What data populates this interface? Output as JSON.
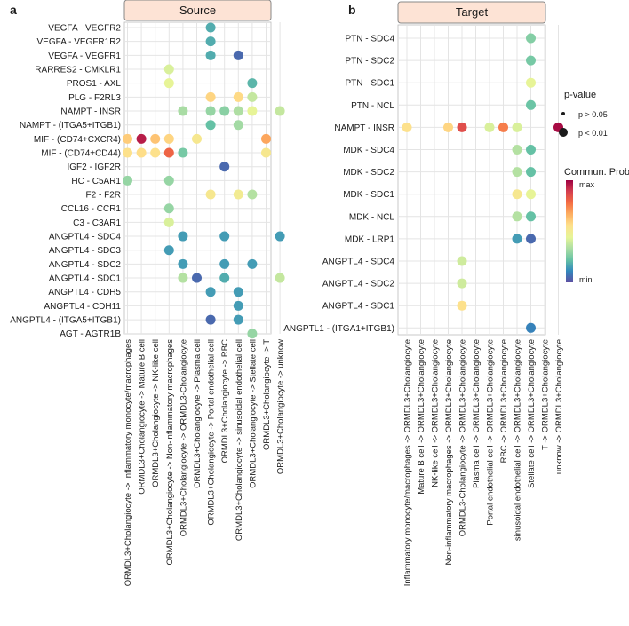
{
  "colors": {
    "grid": "#e4e4e4",
    "strip_fill": "#fde3d5",
    "strip_stroke": "#888888",
    "scale": [
      "#5e4fa2",
      "#3288bd",
      "#66c2a5",
      "#abdda4",
      "#e6f598",
      "#fee08b",
      "#fdae61",
      "#f46d43",
      "#d53e4f",
      "#9e0142"
    ]
  },
  "chart_data": [
    {
      "type": "bubble-grid",
      "panel_letter": "a",
      "title": "Source",
      "y_labels": [
        "VEGFA - VEGFR2",
        "VEGFA - VEGFR1R2",
        "VEGFA - VEGFR1",
        "RARRES2 - CMKLR1",
        "PROS1 - AXL",
        "PLG - F2RL3",
        "NAMPT - INSR",
        "NAMPT - (ITGA5+ITGB1)",
        "MIF - (CD74+CXCR4)",
        "MIF - (CD74+CD44)",
        "IGF2 - IGF2R",
        "HC - C5AR1",
        "F2 - F2R",
        "CCL16 - CCR1",
        "C3 - C3AR1",
        "ANGPTL4 - SDC4",
        "ANGPTL4 - SDC3",
        "ANGPTL4 - SDC2",
        "ANGPTL4 - SDC1",
        "ANGPTL4 - CDH5",
        "ANGPTL4 - CDH11",
        "ANGPTL4 - (ITGA5+ITGB1)",
        "AGT - AGTR1B"
      ],
      "x_labels": [
        "ORMDL3+Cholangiocyte -> Inflammatory monocyte/macrophages",
        "ORMDL3+Cholangiocyte -> Mature B cell",
        "ORMDL3+Cholangiocyte -> NK-like cell",
        "ORMDL3+Cholangiocyte -> Non-inflammatory macrophages",
        "ORMDL3+Cholangiocyte -> ORMDL3-Cholangiocyte",
        "ORMDL3+Cholangiocyte -> Plasma cell",
        "ORMDL3+Cholangiocyte -> Portal endothelial cell",
        "ORMDL3+Cholangiocyte -> RBC",
        "ORMDL3+Cholangiocyte -> sinusoidal endothelial cell",
        "ORMDL3+Cholangiocyte -> Stellate cell",
        "ORMDL3+Cholangiocyte -> T",
        "ORMDL3+Cholangiocyte -> unknow"
      ],
      "points": [
        {
          "row": 0,
          "col": 6,
          "prob": 0.18,
          "p_value": "p < 0.01"
        },
        {
          "row": 1,
          "col": 6,
          "prob": 0.18,
          "p_value": "p < 0.01"
        },
        {
          "row": 2,
          "col": 6,
          "prob": 0.18,
          "p_value": "p < 0.01"
        },
        {
          "row": 2,
          "col": 8,
          "prob": 0.05,
          "p_value": "p < 0.01"
        },
        {
          "row": 3,
          "col": 3,
          "prob": 0.42,
          "p_value": "p < 0.01"
        },
        {
          "row": 4,
          "col": 3,
          "prob": 0.45,
          "p_value": "p < 0.01"
        },
        {
          "row": 4,
          "col": 9,
          "prob": 0.2,
          "p_value": "p < 0.01"
        },
        {
          "row": 5,
          "col": 6,
          "prob": 0.58,
          "p_value": "p < 0.01"
        },
        {
          "row": 5,
          "col": 8,
          "prob": 0.57,
          "p_value": "p < 0.01"
        },
        {
          "row": 5,
          "col": 9,
          "prob": 0.38,
          "p_value": "p < 0.01"
        },
        {
          "row": 6,
          "col": 4,
          "prob": 0.33,
          "p_value": "p < 0.01"
        },
        {
          "row": 6,
          "col": 6,
          "prob": 0.3,
          "p_value": "p < 0.01"
        },
        {
          "row": 6,
          "col": 7,
          "prob": 0.28,
          "p_value": "p < 0.01"
        },
        {
          "row": 6,
          "col": 8,
          "prob": 0.34,
          "p_value": "p < 0.01"
        },
        {
          "row": 6,
          "col": 9,
          "prob": 0.45,
          "p_value": "p < 0.01"
        },
        {
          "row": 6,
          "col": 11,
          "prob": 0.38,
          "p_value": "p < 0.01"
        },
        {
          "row": 7,
          "col": 6,
          "prob": 0.22,
          "p_value": "p < 0.01"
        },
        {
          "row": 7,
          "col": 8,
          "prob": 0.32,
          "p_value": "p < 0.01"
        },
        {
          "row": 8,
          "col": 0,
          "prob": 0.6,
          "p_value": "p < 0.01"
        },
        {
          "row": 8,
          "col": 1,
          "prob": 0.95,
          "p_value": "p < 0.01"
        },
        {
          "row": 8,
          "col": 2,
          "prob": 0.62,
          "p_value": "p < 0.01"
        },
        {
          "row": 8,
          "col": 3,
          "prob": 0.58,
          "p_value": "p < 0.01"
        },
        {
          "row": 8,
          "col": 5,
          "prob": 0.52,
          "p_value": "p < 0.01"
        },
        {
          "row": 8,
          "col": 10,
          "prob": 0.68,
          "p_value": "p < 0.01"
        },
        {
          "row": 9,
          "col": 0,
          "prob": 0.55,
          "p_value": "p < 0.01"
        },
        {
          "row": 9,
          "col": 1,
          "prob": 0.56,
          "p_value": "p < 0.01"
        },
        {
          "row": 9,
          "col": 2,
          "prob": 0.55,
          "p_value": "p < 0.01"
        },
        {
          "row": 9,
          "col": 3,
          "prob": 0.8,
          "p_value": "p < 0.01"
        },
        {
          "row": 9,
          "col": 4,
          "prob": 0.25,
          "p_value": "p < 0.01"
        },
        {
          "row": 9,
          "col": 10,
          "prob": 0.52,
          "p_value": "p < 0.01"
        },
        {
          "row": 10,
          "col": 7,
          "prob": 0.05,
          "p_value": "p < 0.01"
        },
        {
          "row": 11,
          "col": 0,
          "prob": 0.3,
          "p_value": "p < 0.01"
        },
        {
          "row": 11,
          "col": 3,
          "prob": 0.3,
          "p_value": "p < 0.01"
        },
        {
          "row": 12,
          "col": 6,
          "prob": 0.52,
          "p_value": "p < 0.01"
        },
        {
          "row": 12,
          "col": 8,
          "prob": 0.5,
          "p_value": "p < 0.01"
        },
        {
          "row": 12,
          "col": 9,
          "prob": 0.35,
          "p_value": "p < 0.01"
        },
        {
          "row": 13,
          "col": 3,
          "prob": 0.3,
          "p_value": "p < 0.01"
        },
        {
          "row": 14,
          "col": 3,
          "prob": 0.42,
          "p_value": "p < 0.01"
        },
        {
          "row": 15,
          "col": 4,
          "prob": 0.15,
          "p_value": "p < 0.01"
        },
        {
          "row": 15,
          "col": 7,
          "prob": 0.15,
          "p_value": "p < 0.01"
        },
        {
          "row": 15,
          "col": 11,
          "prob": 0.15,
          "p_value": "p < 0.01"
        },
        {
          "row": 16,
          "col": 3,
          "prob": 0.15,
          "p_value": "p < 0.01"
        },
        {
          "row": 17,
          "col": 4,
          "prob": 0.15,
          "p_value": "p < 0.01"
        },
        {
          "row": 17,
          "col": 7,
          "prob": 0.15,
          "p_value": "p < 0.01"
        },
        {
          "row": 17,
          "col": 9,
          "prob": 0.15,
          "p_value": "p < 0.01"
        },
        {
          "row": 18,
          "col": 4,
          "prob": 0.35,
          "p_value": "p < 0.01"
        },
        {
          "row": 18,
          "col": 5,
          "prob": 0.05,
          "p_value": "p < 0.01"
        },
        {
          "row": 18,
          "col": 7,
          "prob": 0.18,
          "p_value": "p < 0.01"
        },
        {
          "row": 18,
          "col": 11,
          "prob": 0.38,
          "p_value": "p < 0.01"
        },
        {
          "row": 19,
          "col": 6,
          "prob": 0.15,
          "p_value": "p < 0.01"
        },
        {
          "row": 19,
          "col": 8,
          "prob": 0.15,
          "p_value": "p < 0.01"
        },
        {
          "row": 20,
          "col": 8,
          "prob": 0.15,
          "p_value": "p < 0.01"
        },
        {
          "row": 21,
          "col": 6,
          "prob": 0.05,
          "p_value": "p < 0.01"
        },
        {
          "row": 21,
          "col": 8,
          "prob": 0.15,
          "p_value": "p < 0.01"
        },
        {
          "row": 22,
          "col": 9,
          "prob": 0.3,
          "p_value": "p < 0.01"
        }
      ]
    },
    {
      "type": "bubble-grid",
      "panel_letter": "b",
      "title": "Target",
      "y_labels": [
        "PTN - SDC4",
        "PTN - SDC2",
        "PTN - SDC1",
        "PTN - NCL",
        "NAMPT - INSR",
        "MDK - SDC4",
        "MDK - SDC2",
        "MDK - SDC1",
        "MDK - NCL",
        "MDK - LRP1",
        "ANGPTL4 - SDC4",
        "ANGPTL4 - SDC2",
        "ANGPTL4 - SDC1",
        "ANGPTL1 - (ITGA1+ITGB1)"
      ],
      "x_labels": [
        "Inflammatory monocyte/macrophages -> ORMDL3+Cholangiocyte",
        "Mature B cell -> ORMDL3+Cholangiocyte",
        "NK-like cell -> ORMDL3+Cholangiocyte",
        "Non-inflammatory macrophages -> ORMDL3+Cholangiocyte",
        "ORMDL3-Cholangiocyte -> ORMDL3+Cholangiocyte",
        "Plasma cell -> ORMDL3+Cholangiocyte",
        "Portal endothelial cell -> ORMDL3+Cholangiocyte",
        "RBC -> ORMDL3+Cholangiocyte",
        "sinusoidal endothelial cell -> ORMDL3+Cholangiocyte",
        "Stellate cell -> ORMDL3+Cholangiocyte",
        "T -> ORMDL3+Cholangiocyte",
        "unknow -> ORMDL3+Cholangiocyte"
      ],
      "points": [
        {
          "row": 0,
          "col": 9,
          "prob": 0.27,
          "p_value": "p < 0.01"
        },
        {
          "row": 1,
          "col": 9,
          "prob": 0.25,
          "p_value": "p < 0.01"
        },
        {
          "row": 2,
          "col": 9,
          "prob": 0.45,
          "p_value": "p < 0.01"
        },
        {
          "row": 3,
          "col": 9,
          "prob": 0.23,
          "p_value": "p < 0.01"
        },
        {
          "row": 4,
          "col": 0,
          "prob": 0.55,
          "p_value": "p < 0.01"
        },
        {
          "row": 4,
          "col": 3,
          "prob": 0.58,
          "p_value": "p < 0.01"
        },
        {
          "row": 4,
          "col": 4,
          "prob": 0.85,
          "p_value": "p < 0.01"
        },
        {
          "row": 4,
          "col": 6,
          "prob": 0.42,
          "p_value": "p < 0.01"
        },
        {
          "row": 4,
          "col": 7,
          "prob": 0.75,
          "p_value": "p < 0.01"
        },
        {
          "row": 4,
          "col": 8,
          "prob": 0.42,
          "p_value": "p < 0.01"
        },
        {
          "row": 4,
          "col": 11,
          "prob": 0.98,
          "p_value": "p < 0.01"
        },
        {
          "row": 5,
          "col": 8,
          "prob": 0.35,
          "p_value": "p < 0.01"
        },
        {
          "row": 5,
          "col": 9,
          "prob": 0.22,
          "p_value": "p < 0.01"
        },
        {
          "row": 6,
          "col": 8,
          "prob": 0.35,
          "p_value": "p < 0.01"
        },
        {
          "row": 6,
          "col": 9,
          "prob": 0.22,
          "p_value": "p < 0.01"
        },
        {
          "row": 7,
          "col": 8,
          "prob": 0.52,
          "p_value": "p < 0.01"
        },
        {
          "row": 7,
          "col": 9,
          "prob": 0.45,
          "p_value": "p < 0.01"
        },
        {
          "row": 8,
          "col": 8,
          "prob": 0.35,
          "p_value": "p < 0.01"
        },
        {
          "row": 8,
          "col": 9,
          "prob": 0.22,
          "p_value": "p < 0.01"
        },
        {
          "row": 9,
          "col": 8,
          "prob": 0.15,
          "p_value": "p < 0.01"
        },
        {
          "row": 9,
          "col": 9,
          "prob": 0.05,
          "p_value": "p < 0.01"
        },
        {
          "row": 10,
          "col": 4,
          "prob": 0.4,
          "p_value": "p < 0.01"
        },
        {
          "row": 11,
          "col": 4,
          "prob": 0.4,
          "p_value": "p < 0.01"
        },
        {
          "row": 12,
          "col": 4,
          "prob": 0.55,
          "p_value": "p < 0.01"
        },
        {
          "row": 13,
          "col": 9,
          "prob": 0.1,
          "p_value": "p < 0.01"
        }
      ]
    }
  ],
  "legend": {
    "pvalue_title": "p-value",
    "pvalue_items": [
      "p > 0.05",
      "p < 0.01"
    ],
    "color_title": "Commun. Prob.",
    "color_max": "max",
    "color_min": "min"
  }
}
